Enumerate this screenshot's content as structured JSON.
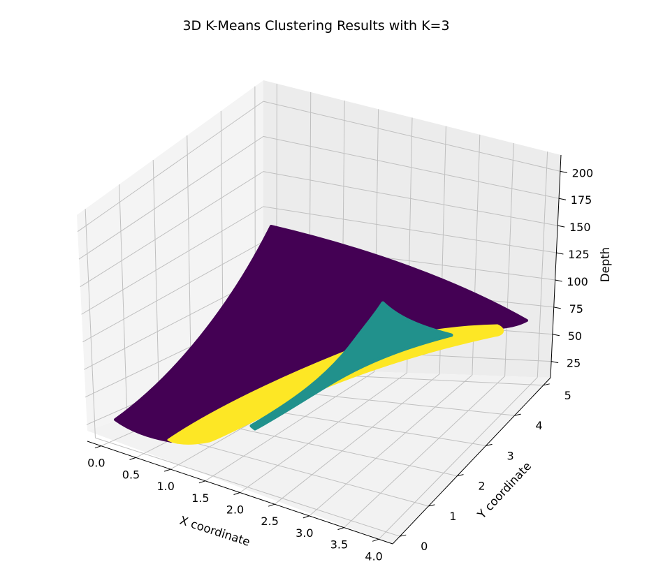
{
  "chart_data": {
    "type": "scatter3d",
    "title": "3D K-Means Clustering Results with K=3",
    "xlabel": "X coordinate",
    "ylabel": "Y coordinate",
    "zlabel": "Depth",
    "xlim": [
      -0.2,
      4.2
    ],
    "ylim": [
      -0.25,
      5.25
    ],
    "zlim": [
      10,
      215
    ],
    "xticks": [
      "0.0",
      "0.5",
      "1.0",
      "1.5",
      "2.0",
      "2.5",
      "3.0",
      "3.5",
      "4.0"
    ],
    "yticks": [
      "0",
      "1",
      "2",
      "3",
      "4",
      "5"
    ],
    "zticks": [
      "25",
      "50",
      "75",
      "100",
      "125",
      "150",
      "175",
      "200"
    ],
    "grid": true,
    "colormap": "viridis",
    "clusters": [
      {
        "label": 0,
        "color": "#440154",
        "region": "upper sheet (large depth)"
      },
      {
        "label": 1,
        "color": "#21918c",
        "region": "mid wedge"
      },
      {
        "label": 2,
        "color": "#fde725",
        "region": "lower band (small depth)"
      }
    ]
  }
}
